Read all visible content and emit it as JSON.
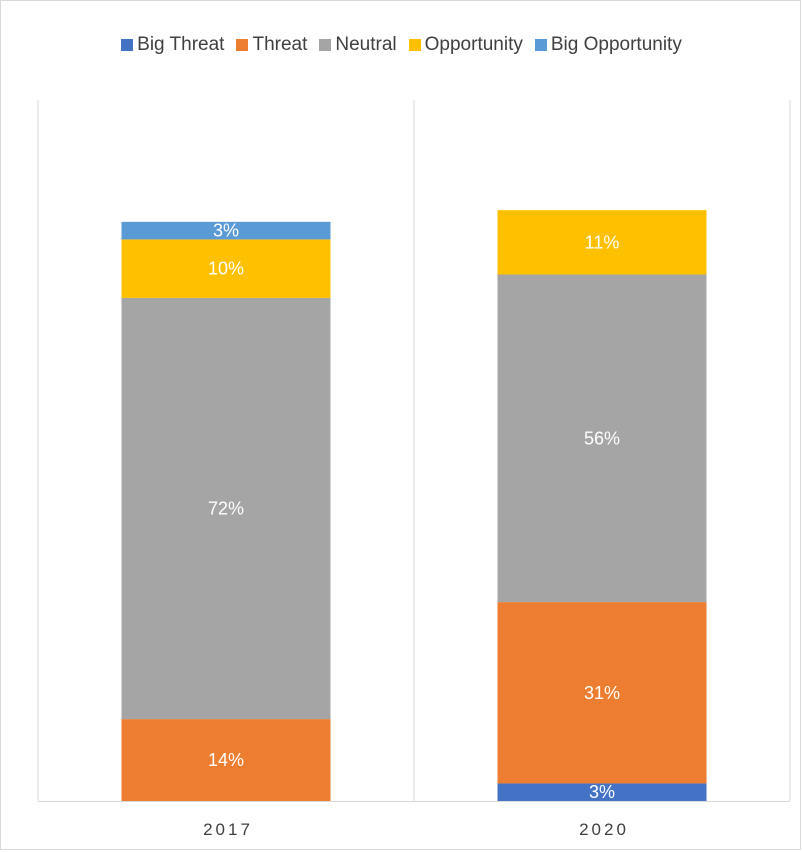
{
  "chart_data": {
    "type": "bar",
    "stacked": true,
    "categories": [
      "2017",
      "2020"
    ],
    "series": [
      {
        "name": "Big Threat",
        "color": "#4472c4",
        "values": [
          0,
          3
        ],
        "labels": [
          "",
          "3%"
        ]
      },
      {
        "name": "Threat",
        "color": "#ed7d31",
        "values": [
          14,
          31
        ],
        "labels": [
          "14%",
          "31%"
        ]
      },
      {
        "name": "Neutral",
        "color": "#a5a5a5",
        "values": [
          72,
          56
        ],
        "labels": [
          "72%",
          "56%"
        ]
      },
      {
        "name": "Opportunity",
        "color": "#ffc000",
        "values": [
          10,
          11
        ],
        "labels": [
          "10%",
          "11%"
        ]
      },
      {
        "name": "Big Opportunity",
        "color": "#5b9bd5",
        "values": [
          3,
          0
        ],
        "labels": [
          "3%",
          ""
        ]
      }
    ],
    "ylim": [
      0,
      106
    ],
    "legend_position": "top",
    "grid": false,
    "title": "",
    "xlabel": "",
    "ylabel": ""
  }
}
